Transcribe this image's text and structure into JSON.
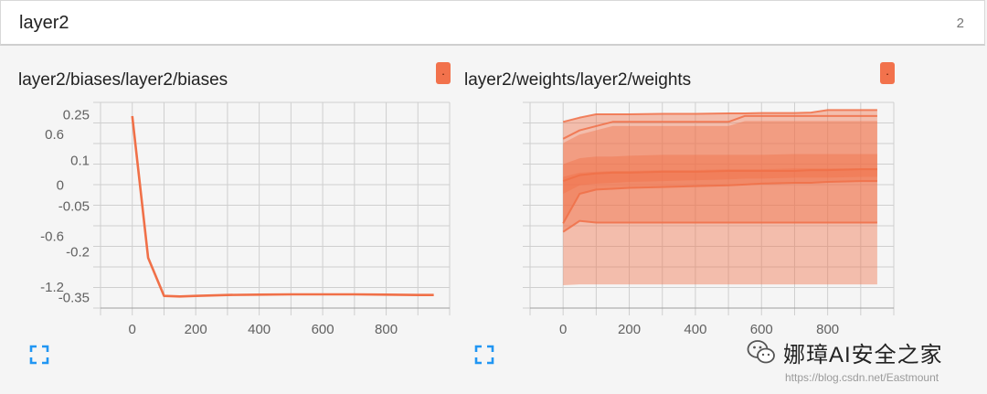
{
  "header": {
    "title": "layer2",
    "count": "2"
  },
  "cards": [
    {
      "title": "layer2/biases/layer2/biases",
      "menu_label": "."
    },
    {
      "title": "layer2/weights/layer2/weights",
      "menu_label": "."
    }
  ],
  "watermark": {
    "text": "娜璋AI安全之家",
    "url": "https://blog.csdn.net/Eastmount"
  },
  "colors": {
    "accent": "#f2724c",
    "line": "#f07048",
    "expand_icon": "#2196f3"
  },
  "chart_data": [
    {
      "type": "line",
      "title": "layer2/biases/layer2/biases",
      "x_ticks": [
        0,
        200,
        400,
        600,
        800
      ],
      "y_ticks": [
        0.25,
        0.1,
        -0.05,
        -0.2,
        -0.35
      ],
      "x_tick_labels": [
        "0",
        "200",
        "400",
        "600",
        "800"
      ],
      "y_tick_labels": [
        "0.25",
        "0.1",
        "-0.05",
        "-0.2",
        "-0.35"
      ],
      "xlim": [
        -100,
        1000
      ],
      "ylim": [
        -0.385,
        0.29
      ],
      "grid": true,
      "x": [
        0,
        50,
        100,
        150,
        200,
        300,
        400,
        500,
        600,
        700,
        800,
        900,
        950
      ],
      "series": [
        {
          "values": [
            0.245,
            -0.22,
            -0.345,
            -0.347,
            -0.345,
            -0.342,
            -0.341,
            -0.34,
            -0.34,
            -0.34,
            -0.341,
            -0.342,
            -0.342
          ]
        }
      ]
    },
    {
      "type": "area",
      "title": "layer2/weights/layer2/weights",
      "x_ticks": [
        0,
        200,
        400,
        600,
        800
      ],
      "y_ticks": [
        0.6,
        0,
        -0.6,
        -1.2
      ],
      "x_tick_labels": [
        "0",
        "200",
        "400",
        "600",
        "800"
      ],
      "y_tick_labels": [
        "0.6",
        "0",
        "-0.6",
        "-1.2"
      ],
      "xlim": [
        -100,
        1000
      ],
      "ylim": [
        -1.45,
        0.98
      ],
      "grid": true,
      "x": [
        0,
        50,
        100,
        150,
        200,
        300,
        400,
        500,
        550,
        600,
        700,
        750,
        800,
        900,
        950
      ],
      "bands": [
        {
          "upper": [
            0.75,
            0.8,
            0.84,
            0.84,
            0.84,
            0.845,
            0.845,
            0.85,
            0.85,
            0.855,
            0.855,
            0.86,
            0.89,
            0.89,
            0.89
          ],
          "lower": [
            -1.18,
            -1.17,
            -1.17,
            -1.17,
            -1.17,
            -1.17,
            -1.17,
            -1.17,
            -1.17,
            -1.17,
            -1.17,
            -1.17,
            -1.17,
            -1.17,
            -1.17
          ]
        },
        {
          "upper": [
            0.5,
            0.6,
            0.65,
            0.7,
            0.7,
            0.7,
            0.7,
            0.7,
            0.76,
            0.76,
            0.76,
            0.76,
            0.76,
            0.76,
            0.76
          ],
          "lower": [
            -0.55,
            -0.42,
            -0.44,
            -0.44,
            -0.44,
            -0.44,
            -0.44,
            -0.44,
            -0.44,
            -0.44,
            -0.44,
            -0.44,
            -0.44,
            -0.44,
            -0.44
          ]
        },
        {
          "upper": [
            0.25,
            0.32,
            0.34,
            0.34,
            0.35,
            0.36,
            0.36,
            0.36,
            0.36,
            0.36,
            0.37,
            0.37,
            0.37,
            0.37,
            0.37
          ],
          "lower": [
            -0.45,
            -0.1,
            -0.05,
            -0.04,
            -0.03,
            -0.02,
            -0.01,
            0.0,
            0.01,
            0.02,
            0.03,
            0.03,
            0.04,
            0.05,
            0.05
          ]
        },
        {
          "upper": [
            0.1,
            0.15,
            0.16,
            0.17,
            0.17,
            0.18,
            0.18,
            0.19,
            0.19,
            0.19,
            0.2,
            0.2,
            0.2,
            0.2,
            0.2
          ],
          "lower": [
            -0.1,
            0.0,
            0.02,
            0.03,
            0.04,
            0.05,
            0.06,
            0.07,
            0.08,
            0.08,
            0.09,
            0.09,
            0.09,
            0.1,
            0.1
          ]
        }
      ],
      "series": [
        {
          "values": [
            0.75,
            0.8,
            0.84,
            0.84,
            0.84,
            0.845,
            0.845,
            0.85,
            0.85,
            0.855,
            0.855,
            0.86,
            0.89,
            0.89,
            0.89
          ]
        },
        {
          "values": [
            0.55,
            0.65,
            0.7,
            0.75,
            0.75,
            0.75,
            0.75,
            0.75,
            0.82,
            0.82,
            0.82,
            0.82,
            0.82,
            0.82,
            0.82
          ]
        },
        {
          "values": [
            0.05,
            0.12,
            0.14,
            0.15,
            0.15,
            0.16,
            0.16,
            0.17,
            0.17,
            0.17,
            0.17,
            0.18,
            0.18,
            0.19,
            0.19
          ]
        },
        {
          "values": [
            -0.45,
            -0.1,
            -0.05,
            -0.04,
            -0.03,
            -0.02,
            -0.01,
            0.0,
            0.01,
            0.02,
            0.03,
            0.03,
            0.04,
            0.05,
            0.05
          ]
        },
        {
          "values": [
            -0.55,
            -0.42,
            -0.44,
            -0.44,
            -0.44,
            -0.44,
            -0.44,
            -0.44,
            -0.44,
            -0.44,
            -0.44,
            -0.44,
            -0.44,
            -0.44,
            -0.44
          ]
        }
      ]
    }
  ]
}
